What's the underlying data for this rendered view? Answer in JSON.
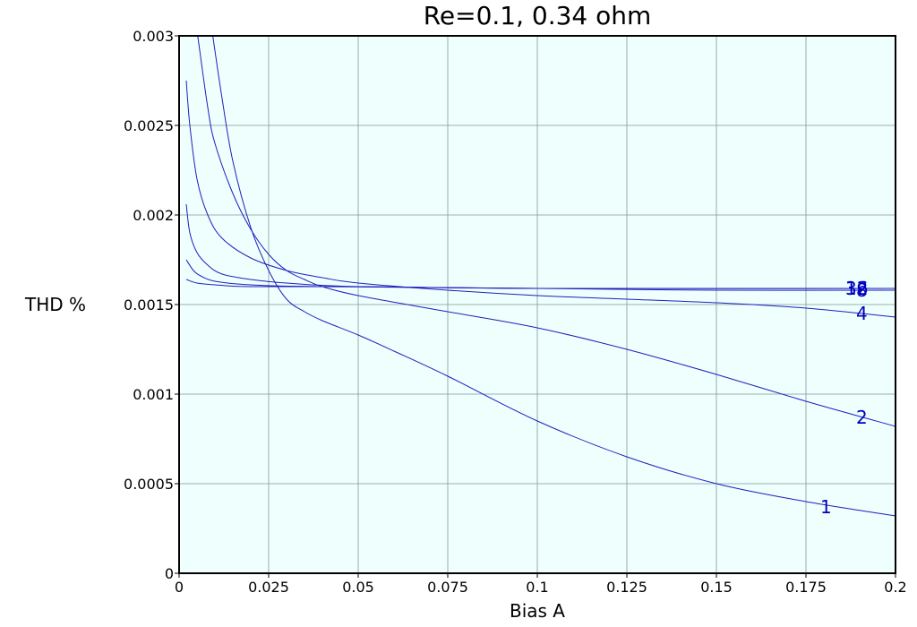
{
  "chart_data": {
    "type": "line",
    "title": "Re=0.1, 0.34 ohm",
    "xlabel": "Bias A",
    "ylabel": "THD %",
    "xlim": [
      0,
      0.2
    ],
    "ylim": [
      0,
      0.003
    ],
    "grid": true,
    "background": "#eefffd",
    "line_color": "#1f1fbf",
    "label_color": "#0000c0",
    "x_ticks": [
      {
        "value": 0,
        "label": "0"
      },
      {
        "value": 0.025,
        "label": "0.025"
      },
      {
        "value": 0.05,
        "label": "0.05"
      },
      {
        "value": 0.075,
        "label": "0.075"
      },
      {
        "value": 0.1,
        "label": "0.1"
      },
      {
        "value": 0.125,
        "label": "0.125"
      },
      {
        "value": 0.15,
        "label": "0.15"
      },
      {
        "value": 0.175,
        "label": "0.175"
      },
      {
        "value": 0.2,
        "label": "0.2"
      }
    ],
    "y_ticks": [
      {
        "value": 0,
        "label": "0"
      },
      {
        "value": 0.0005,
        "label": "0.0005"
      },
      {
        "value": 0.001,
        "label": "0.001"
      },
      {
        "value": 0.0015,
        "label": "0.0015"
      },
      {
        "value": 0.002,
        "label": "0.002"
      },
      {
        "value": 0.0025,
        "label": "0.0025"
      },
      {
        "value": 0.003,
        "label": "0.003"
      }
    ],
    "series": [
      {
        "name": "1",
        "label": "1",
        "label_at": [
          0.179,
          0.00037
        ],
        "points": [
          [
            0.0094,
            0.003
          ],
          [
            0.012,
            0.00265
          ],
          [
            0.015,
            0.0023
          ],
          [
            0.02,
            0.00193
          ],
          [
            0.025,
            0.00169
          ],
          [
            0.03,
            0.00153
          ],
          [
            0.035,
            0.00146
          ],
          [
            0.04,
            0.00141
          ],
          [
            0.05,
            0.00133
          ],
          [
            0.06,
            0.00124
          ],
          [
            0.075,
            0.0011
          ],
          [
            0.1,
            0.00085
          ],
          [
            0.125,
            0.00065
          ],
          [
            0.15,
            0.0005
          ],
          [
            0.175,
            0.0004
          ],
          [
            0.2,
            0.00032
          ]
        ]
      },
      {
        "name": "2",
        "label": "2",
        "label_at": [
          0.189,
          0.00087
        ],
        "points": [
          [
            0.0052,
            0.003
          ],
          [
            0.008,
            0.0026
          ],
          [
            0.01,
            0.0024
          ],
          [
            0.015,
            0.00212
          ],
          [
            0.02,
            0.00192
          ],
          [
            0.025,
            0.00178
          ],
          [
            0.03,
            0.00169
          ],
          [
            0.035,
            0.00164
          ],
          [
            0.04,
            0.0016
          ],
          [
            0.05,
            0.00155
          ],
          [
            0.075,
            0.00146
          ],
          [
            0.1,
            0.00137
          ],
          [
            0.125,
            0.00125
          ],
          [
            0.15,
            0.00111
          ],
          [
            0.175,
            0.00096
          ],
          [
            0.2,
            0.00082
          ]
        ]
      },
      {
        "name": "4",
        "label": "4",
        "label_at": [
          0.189,
          0.00145
        ],
        "points": [
          [
            0.002,
            0.00275
          ],
          [
            0.003,
            0.0025
          ],
          [
            0.005,
            0.0022
          ],
          [
            0.008,
            0.002
          ],
          [
            0.012,
            0.00187
          ],
          [
            0.02,
            0.00176
          ],
          [
            0.03,
            0.00169
          ],
          [
            0.04,
            0.00165
          ],
          [
            0.05,
            0.00162
          ],
          [
            0.075,
            0.00158
          ],
          [
            0.1,
            0.00155
          ],
          [
            0.125,
            0.00153
          ],
          [
            0.15,
            0.00151
          ],
          [
            0.175,
            0.00148
          ],
          [
            0.2,
            0.00143
          ]
        ]
      },
      {
        "name": "8",
        "label": "8",
        "label_at": [
          0.189,
          0.00158
        ],
        "points": [
          [
            0.002,
            0.00206
          ],
          [
            0.003,
            0.0019
          ],
          [
            0.005,
            0.00179
          ],
          [
            0.008,
            0.00172
          ],
          [
            0.012,
            0.00167
          ],
          [
            0.02,
            0.00164
          ],
          [
            0.03,
            0.00162
          ],
          [
            0.05,
            0.0016
          ],
          [
            0.1,
            0.00159
          ],
          [
            0.15,
            0.00158
          ],
          [
            0.2,
            0.00158
          ]
        ]
      },
      {
        "name": "16",
        "label": "16",
        "label_at": [
          0.186,
          0.00159
        ],
        "points": [
          [
            0.002,
            0.00175
          ],
          [
            0.004,
            0.00169
          ],
          [
            0.006,
            0.00166
          ],
          [
            0.01,
            0.00163
          ],
          [
            0.02,
            0.00161
          ],
          [
            0.04,
            0.0016
          ],
          [
            0.1,
            0.00159
          ],
          [
            0.2,
            0.00159
          ]
        ]
      },
      {
        "name": "32",
        "label": "32",
        "label_at": [
          0.186,
          0.00159
        ],
        "points": [
          [
            0.002,
            0.00164
          ],
          [
            0.005,
            0.00162
          ],
          [
            0.01,
            0.00161
          ],
          [
            0.02,
            0.0016
          ],
          [
            0.05,
            0.0016
          ],
          [
            0.1,
            0.00159
          ],
          [
            0.2,
            0.00159
          ]
        ]
      }
    ]
  }
}
